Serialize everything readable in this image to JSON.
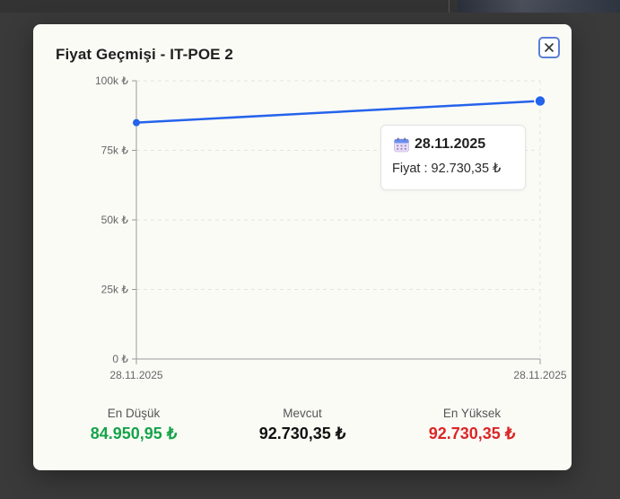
{
  "modal": {
    "title": "Fiyat Geçmişi - IT-POE 2",
    "close_icon": "close-icon"
  },
  "chart_data": {
    "type": "line",
    "x": [
      "28.11.2025",
      "28.11.2025"
    ],
    "series": [
      {
        "values": [
          84950.95,
          92730.35
        ],
        "color": "#2563eb"
      }
    ],
    "ylim": [
      0,
      100000
    ],
    "y_ticks": [
      0,
      25000,
      50000,
      75000,
      100000
    ],
    "y_tick_labels": [
      "0 ₺",
      "25k ₺",
      "50k ₺",
      "75k ₺",
      "100k ₺"
    ],
    "x_tick_labels": [
      "28.11.2025",
      "28.11.2025"
    ],
    "grid": "horizontal dashed",
    "title": "",
    "xlabel": "",
    "ylabel": ""
  },
  "tooltip": {
    "icon": "calendar-icon",
    "date": "28.11.2025",
    "price_text": "Fiyat : 92.730,35 ₺"
  },
  "stats": {
    "min": {
      "label": "En Düşük",
      "value": "84.950,95 ₺",
      "color": "#16a34a"
    },
    "current": {
      "label": "Mevcut",
      "value": "92.730,35 ₺",
      "color": "#111111"
    },
    "max": {
      "label": "En Yüksek",
      "value": "92.730,35 ₺",
      "color": "#dc2626"
    }
  }
}
